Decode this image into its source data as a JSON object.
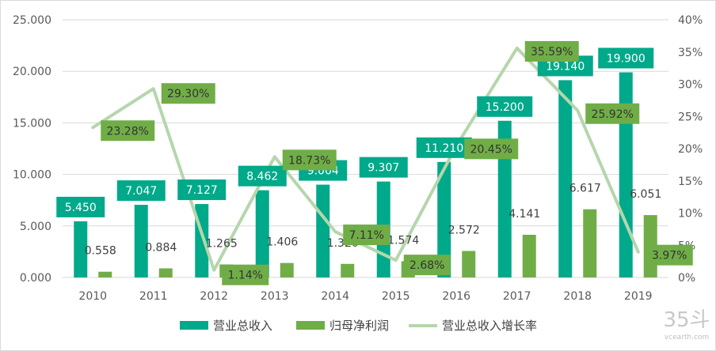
{
  "chart_data": {
    "type": "bar",
    "title": "",
    "xlabel": "",
    "ylabel": "",
    "categories": [
      "2010",
      "2011",
      "2012",
      "2013",
      "2014",
      "2015",
      "2016",
      "2017",
      "2018",
      "2019"
    ],
    "series": [
      {
        "name": "营业总收入",
        "kind": "bar",
        "axis": "left",
        "values": [
          5.45,
          7.047,
          7.127,
          8.462,
          9.004,
          9.307,
          11.21,
          15.2,
          19.14,
          19.9
        ],
        "labels": [
          "5.450",
          "7.047",
          "7.127",
          "8.462",
          "9.004",
          "9.307",
          "11.210",
          "15.200",
          "19.140",
          "19.900"
        ]
      },
      {
        "name": "归母净利润",
        "kind": "bar",
        "axis": "left",
        "values": [
          0.558,
          0.884,
          1.265,
          1.406,
          1.32,
          1.574,
          2.572,
          4.141,
          6.617,
          6.051
        ],
        "labels": [
          "0.558",
          "0.884",
          "1.265",
          "1.406",
          "1.320",
          "1.574",
          "2.572",
          "4.141",
          "6.617",
          "6.051"
        ]
      },
      {
        "name": "营业总收入增长率",
        "kind": "line",
        "axis": "right",
        "values": [
          23.28,
          29.3,
          1.14,
          18.73,
          7.11,
          2.68,
          20.45,
          35.59,
          25.92,
          3.97
        ],
        "labels": [
          "23.28%",
          "29.30%",
          "1.14%",
          "18.73%",
          "7.11%",
          "2.68%",
          "20.45%",
          "35.59%",
          "25.92%",
          "3.97%"
        ]
      }
    ],
    "y_left": {
      "ylim": [
        0,
        25
      ],
      "ticks": [
        0,
        5,
        10,
        15,
        20,
        25
      ],
      "tick_labels": [
        "0.000",
        "5.000",
        "10.000",
        "15.000",
        "20.000",
        "25.000"
      ]
    },
    "y_right": {
      "ylim": [
        0,
        40
      ],
      "ticks": [
        0,
        5,
        10,
        15,
        20,
        25,
        30,
        35,
        40
      ],
      "tick_labels": [
        "0%",
        "5%",
        "10%",
        "15%",
        "20%",
        "25%",
        "30%",
        "35%",
        "40%"
      ]
    },
    "grid": true,
    "legend": "bottom",
    "colors": {
      "revenue": "#00a98a",
      "profit": "#70ad47",
      "growth": "#b5d6ac",
      "grid": "#d9d9d9",
      "tick_text": "#595959",
      "label_text": "#404040"
    }
  },
  "watermark": {
    "mark": "35斗",
    "site": "vcearth.com"
  }
}
